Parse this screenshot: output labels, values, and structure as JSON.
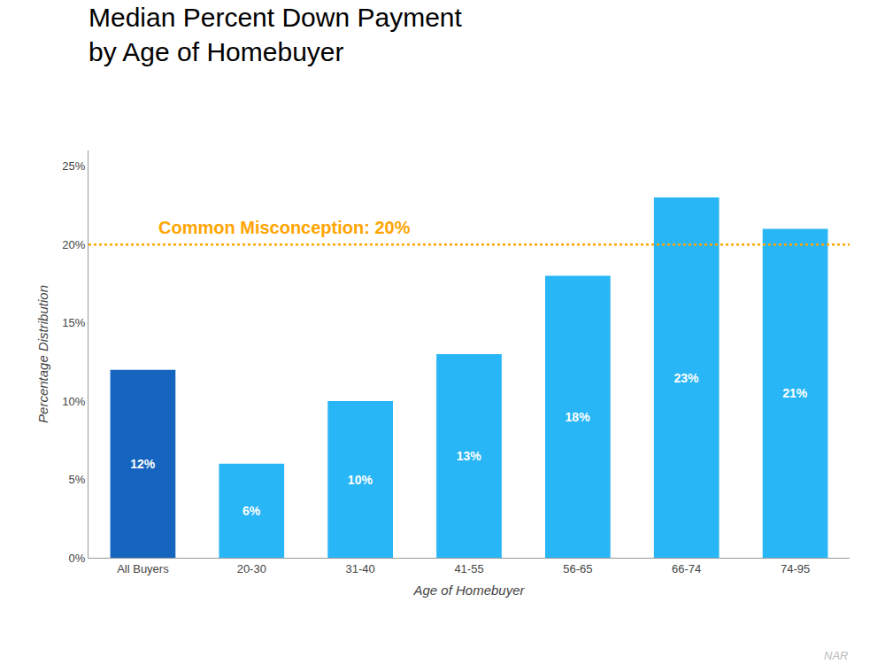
{
  "chart_data": {
    "type": "bar",
    "title": "Median Percent Down Payment",
    "subtitle": "by Age of Homebuyer",
    "x_label": "Age of Homebuyer",
    "y_label": "Percentage Distribution",
    "categories": [
      "All Buyers",
      "20-30",
      "31-40",
      "41-55",
      "56-65",
      "66-74",
      "74-95"
    ],
    "values": [
      12,
      6,
      10,
      13,
      18,
      23,
      21
    ],
    "value_labels": [
      "12%",
      "6%",
      "10%",
      "13%",
      "18%",
      "23%",
      "21%"
    ],
    "data_labels": true,
    "colors": [
      "#1565C0",
      "#29B6F6",
      "#29B6F6",
      "#29B6F6",
      "#29B6F6",
      "#29B6F6",
      "#29B6F6"
    ],
    "ylim": [
      0,
      26
    ],
    "yticks": [
      {
        "value": 0,
        "label": "0%"
      },
      {
        "value": 5,
        "label": "5%"
      },
      {
        "value": 10,
        "label": "10%"
      },
      {
        "value": 15,
        "label": "15%"
      },
      {
        "value": 20,
        "label": "20%"
      },
      {
        "value": 25,
        "label": "25%"
      }
    ],
    "grid": false,
    "reference_lines": [
      {
        "y": 20,
        "color": "#FFA500",
        "label": "Common Misconception: 20%"
      }
    ],
    "annotations": [
      {
        "text": "NAR",
        "color": "#BBBBBB"
      }
    ]
  }
}
